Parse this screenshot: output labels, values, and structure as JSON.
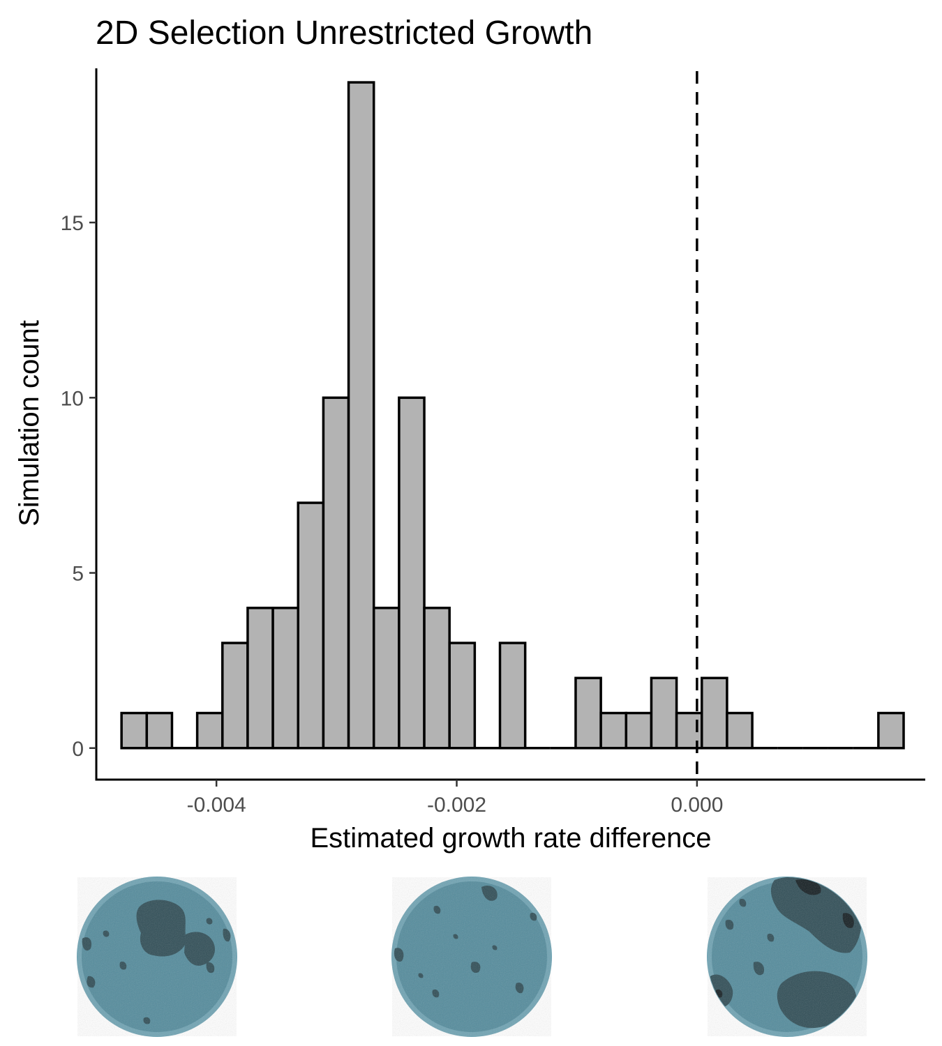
{
  "chart_data": {
    "type": "bar",
    "title": "2D Selection Unrestricted Growth",
    "xlabel": "Estimated growth rate difference",
    "ylabel": "Simulation count",
    "bin_width": 0.00021,
    "bins": [
      {
        "x0": -0.00479,
        "x1": -0.00458,
        "count": 1
      },
      {
        "x0": -0.00458,
        "x1": -0.00437,
        "count": 1
      },
      {
        "x0": -0.00437,
        "x1": -0.00416,
        "count": 0
      },
      {
        "x0": -0.00416,
        "x1": -0.00395,
        "count": 1
      },
      {
        "x0": -0.00395,
        "x1": -0.00374,
        "count": 3
      },
      {
        "x0": -0.00374,
        "x1": -0.00353,
        "count": 4
      },
      {
        "x0": -0.00353,
        "x1": -0.00332,
        "count": 4
      },
      {
        "x0": -0.00332,
        "x1": -0.00311,
        "count": 7
      },
      {
        "x0": -0.00311,
        "x1": -0.0029,
        "count": 10
      },
      {
        "x0": -0.0029,
        "x1": -0.00269,
        "count": 19
      },
      {
        "x0": -0.00269,
        "x1": -0.00248,
        "count": 4
      },
      {
        "x0": -0.00248,
        "x1": -0.00227,
        "count": 10
      },
      {
        "x0": -0.00227,
        "x1": -0.00206,
        "count": 4
      },
      {
        "x0": -0.00206,
        "x1": -0.00185,
        "count": 3
      },
      {
        "x0": -0.00185,
        "x1": -0.00164,
        "count": 0
      },
      {
        "x0": -0.00164,
        "x1": -0.00143,
        "count": 3
      },
      {
        "x0": -0.00143,
        "x1": -0.00122,
        "count": 0
      },
      {
        "x0": -0.00122,
        "x1": -0.00101,
        "count": 0
      },
      {
        "x0": -0.00101,
        "x1": -0.0008,
        "count": 2
      },
      {
        "x0": -0.0008,
        "x1": -0.00059,
        "count": 1
      },
      {
        "x0": -0.00059,
        "x1": -0.00038,
        "count": 1
      },
      {
        "x0": -0.00038,
        "x1": -0.00017,
        "count": 2
      },
      {
        "x0": -0.00017,
        "x1": 4e-05,
        "count": 1
      },
      {
        "x0": 4e-05,
        "x1": 0.00025,
        "count": 2
      },
      {
        "x0": 0.00025,
        "x1": 0.00046,
        "count": 1
      },
      {
        "x0": 0.00046,
        "x1": 0.00067,
        "count": 0
      },
      {
        "x0": 0.00067,
        "x1": 0.00088,
        "count": 0
      },
      {
        "x0": 0.00088,
        "x1": 0.00109,
        "count": 0
      },
      {
        "x0": 0.00109,
        "x1": 0.0013,
        "count": 0
      },
      {
        "x0": 0.0013,
        "x1": 0.00151,
        "count": 0
      },
      {
        "x0": 0.00151,
        "x1": 0.00172,
        "count": 1
      }
    ],
    "xlim": [
      -0.005,
      0.0019
    ],
    "ylim": [
      -0.9,
      19.4
    ],
    "x_ticks": [
      {
        "value": -0.004,
        "label": "-0.004"
      },
      {
        "value": -0.002,
        "label": "-0.002"
      },
      {
        "value": 0.0,
        "label": "0.000"
      }
    ],
    "y_ticks": [
      {
        "value": 0,
        "label": "0"
      },
      {
        "value": 5,
        "label": "5"
      },
      {
        "value": 10,
        "label": "10"
      },
      {
        "value": 15,
        "label": "15"
      }
    ],
    "reference_line": {
      "x": 0.0,
      "style": "dashed",
      "color": "#000000"
    },
    "bar_fill": "#b3b3b3",
    "bar_stroke": "#000000",
    "grid": false,
    "legend": "none"
  },
  "colony_images": [
    {
      "name": "colony-image-left",
      "base_color": "#538b9c",
      "dark_color": "#2f4d56",
      "edge_color": "#6fa3b3"
    },
    {
      "name": "colony-image-middle",
      "base_color": "#538b9c",
      "dark_color": "#2f4d56",
      "edge_color": "#6fa3b3"
    },
    {
      "name": "colony-image-right",
      "base_color": "#538b9c",
      "dark_color": "#2f4d56",
      "edge_color": "#6fa3b3"
    }
  ]
}
